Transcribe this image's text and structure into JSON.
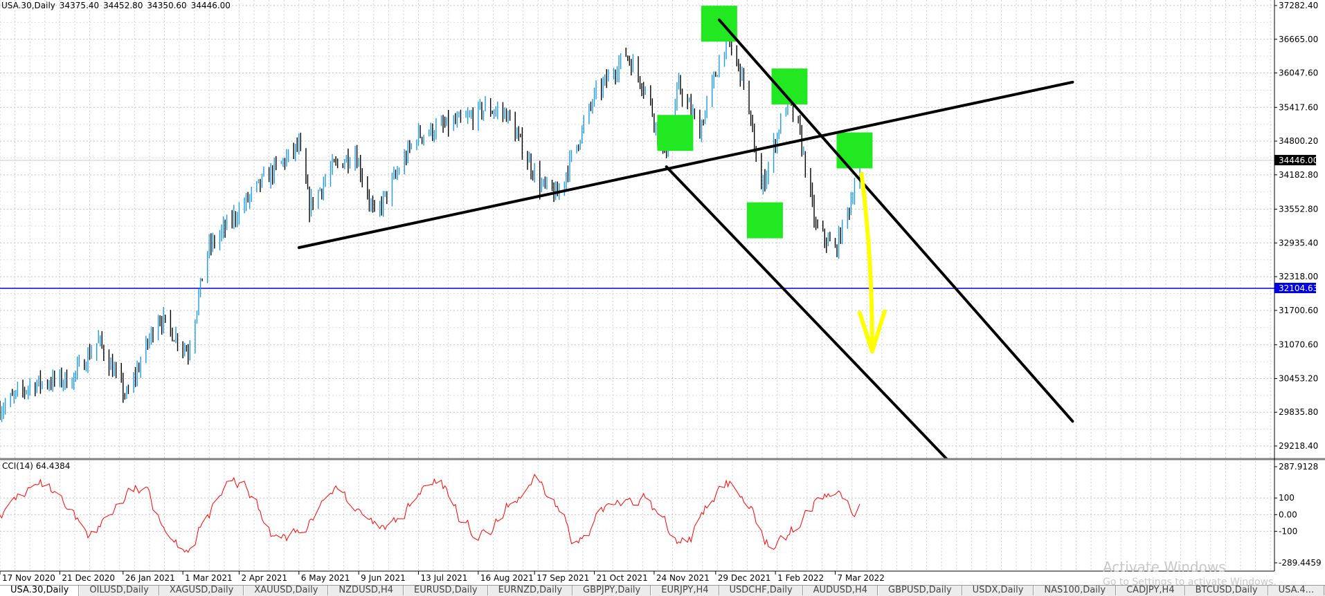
{
  "symbol_info": {
    "symbol": "USA.30,Daily",
    "open": "34375.40",
    "high": "34452.80",
    "low": "34350.60",
    "close": "34446.00"
  },
  "price_axis": {
    "labels": [
      "37282.40",
      "36665.00",
      "36047.60",
      "35417.60",
      "34800.20",
      "34182.80",
      "33552.80",
      "32935.40",
      "32318.00",
      "31700.60",
      "31070.60",
      "30453.20",
      "29835.80",
      "29218.40"
    ],
    "current_price": "34446.00",
    "hline_price": "32104.63",
    "hline_color": "#0000e0",
    "current_price_bg": "#000000"
  },
  "cci_axis": {
    "labels": [
      "287.9128",
      "100",
      "0.00",
      "-100",
      "-289.4459"
    ]
  },
  "indicator": {
    "label": "CCI(14) 64.4384",
    "color": "#ff0000"
  },
  "time_axis": {
    "labels": [
      "17 Nov 2020",
      "21 Dec 2020",
      "26 Jan 2021",
      "1 Mar 2021",
      "2 Apr 2021",
      "6 May 2021",
      "9 Jun 2021",
      "13 Jul 2021",
      "16 Aug 2021",
      "17 Sep 2021",
      "21 Oct 2021",
      "24 Nov 2021",
      "29 Dec 2021",
      "1 Feb 2022",
      "7 Mar 2022"
    ]
  },
  "colors": {
    "bull_candle": "#1e9be6",
    "bear_candle": "#000000",
    "grid": "#c0c0c0",
    "highlight_box": "#22e822",
    "arrow": "#ffff00",
    "trendline": "#000000"
  },
  "chart_data": {
    "type": "candlestick",
    "symbol": "USA.30",
    "timeframe": "Daily",
    "x_range": [
      "2020-11-17",
      "2022-03-21"
    ],
    "ylim": [
      29000,
      37400
    ],
    "current_price": 34446.0,
    "horizontal_line": 32104.63,
    "trendlines": [
      {
        "from": [
          "2021-05-06",
          32850
        ],
        "to": [
          "2022-07-20",
          35880
        ]
      },
      {
        "from": [
          "2021-12-31",
          37020
        ],
        "to": [
          "2022-07-20",
          29670
        ]
      },
      {
        "from": [
          "2021-12-01",
          34330
        ],
        "to": [
          "2022-05-10",
          28960
        ]
      }
    ],
    "price_path": [
      {
        "date": "2020-11-17",
        "price": 29900
      },
      {
        "date": "2020-12-05",
        "price": 30350
      },
      {
        "date": "2020-12-28",
        "price": 30450
      },
      {
        "date": "2021-01-12",
        "price": 31150
      },
      {
        "date": "2021-01-28",
        "price": 30100
      },
      {
        "date": "2021-02-15",
        "price": 31600
      },
      {
        "date": "2021-03-04",
        "price": 30950
      },
      {
        "date": "2021-03-15",
        "price": 32800
      },
      {
        "date": "2021-04-15",
        "price": 34050
      },
      {
        "date": "2021-05-06",
        "price": 34700
      },
      {
        "date": "2021-05-12",
        "price": 33600
      },
      {
        "date": "2021-05-25",
        "price": 34300
      },
      {
        "date": "2021-06-07",
        "price": 34600
      },
      {
        "date": "2021-06-18",
        "price": 33400
      },
      {
        "date": "2021-07-12",
        "price": 34900
      },
      {
        "date": "2021-08-10",
        "price": 35200
      },
      {
        "date": "2021-08-20",
        "price": 35400
      },
      {
        "date": "2021-09-01",
        "price": 35300
      },
      {
        "date": "2021-09-20",
        "price": 34000
      },
      {
        "date": "2021-09-30",
        "price": 33800
      },
      {
        "date": "2021-10-21",
        "price": 35600
      },
      {
        "date": "2021-11-08",
        "price": 36400
      },
      {
        "date": "2021-11-20",
        "price": 35700
      },
      {
        "date": "2021-11-30",
        "price": 34480
      },
      {
        "date": "2021-12-08",
        "price": 35800
      },
      {
        "date": "2021-12-20",
        "price": 35000
      },
      {
        "date": "2022-01-04",
        "price": 36700
      },
      {
        "date": "2022-01-14",
        "price": 35900
      },
      {
        "date": "2022-01-24",
        "price": 33900
      },
      {
        "date": "2022-02-08",
        "price": 35600
      },
      {
        "date": "2022-02-15",
        "price": 34900
      },
      {
        "date": "2022-02-24",
        "price": 33200
      },
      {
        "date": "2022-03-07",
        "price": 32800
      },
      {
        "date": "2022-03-15",
        "price": 33600
      },
      {
        "date": "2022-03-21",
        "price": 34446
      }
    ],
    "annotations": [
      {
        "type": "highlight",
        "date": "2021-12-31",
        "price": 36950
      },
      {
        "type": "highlight",
        "date": "2022-02-09",
        "price": 35800
      },
      {
        "type": "highlight",
        "date": "2021-12-06",
        "price": 34950
      },
      {
        "type": "highlight",
        "date": "2022-01-26",
        "price": 33350
      },
      {
        "type": "highlight",
        "date": "2022-03-18",
        "price": 34630
      },
      {
        "type": "arrow",
        "from": [
          "2022-03-22",
          34200
        ],
        "to": [
          "2022-03-28",
          30950
        ]
      }
    ],
    "indicator": {
      "name": "CCI(14)",
      "current": 64.4384,
      "ylim": [
        -289.4459,
        287.9128
      ],
      "levels": [
        100,
        0,
        -100
      ]
    }
  },
  "tabs": [
    {
      "label": "USA.30,Daily",
      "active": true
    },
    {
      "label": "OILUSD,Daily"
    },
    {
      "label": "XAGUSD,Daily"
    },
    {
      "label": "XAUUSD,Daily"
    },
    {
      "label": "NZDUSD,H4"
    },
    {
      "label": "EURUSD,Daily"
    },
    {
      "label": "EURNZD,Daily"
    },
    {
      "label": "GBPJPY,Daily"
    },
    {
      "label": "EURJPY,H4"
    },
    {
      "label": "USDCHF,Daily"
    },
    {
      "label": "AUDUSD,H4"
    },
    {
      "label": "GBPUSD,Daily"
    },
    {
      "label": "USDX,Daily"
    },
    {
      "label": "NAS100,Daily"
    },
    {
      "label": "CADJPY,H4"
    },
    {
      "label": "BTCUSD,Daily"
    },
    {
      "label": "USA.4..."
    }
  ],
  "watermark": {
    "title": "Activate Windows",
    "subtitle": "Go to Settings to activate Windows."
  }
}
